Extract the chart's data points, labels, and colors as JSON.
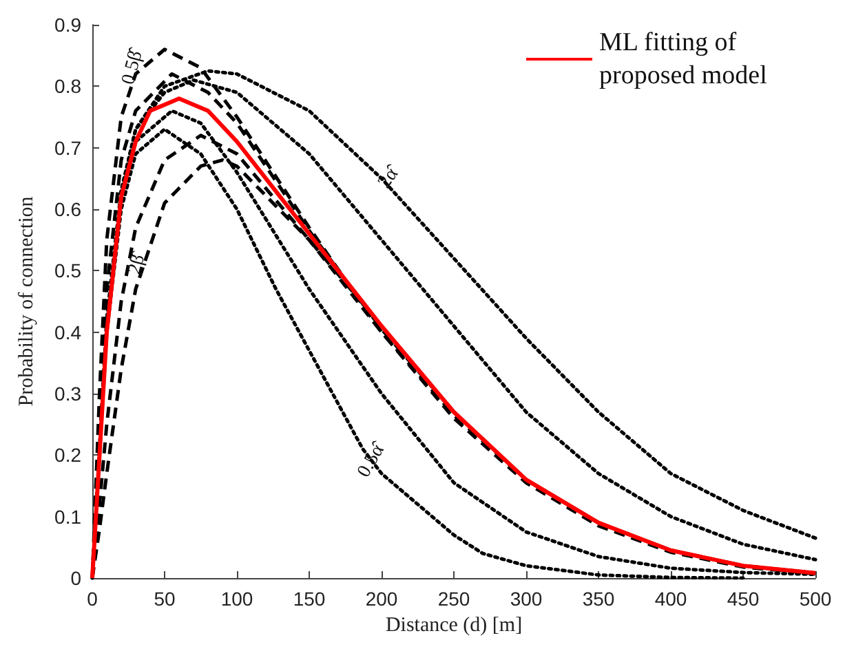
{
  "chart_data": {
    "type": "line",
    "xlabel": "Distance (d) [m]",
    "ylabel": "Probability of connection",
    "xlim": [
      0,
      500
    ],
    "ylim": [
      0,
      0.9
    ],
    "xticks": [
      0,
      50,
      100,
      150,
      200,
      250,
      300,
      350,
      400,
      450,
      500
    ],
    "yticks": [
      0,
      0.1,
      0.2,
      0.3,
      0.4,
      0.5,
      0.6,
      0.7,
      0.8,
      0.9
    ],
    "legend": "top right",
    "marker": "none",
    "series": [
      {
        "color": "#000000",
        "line_style": "dotted",
        "x": [
          0,
          10,
          20,
          30,
          50,
          80,
          100,
          150,
          200,
          250,
          300,
          350,
          400,
          450,
          500
        ],
        "values": [
          0,
          0.42,
          0.63,
          0.73,
          0.8,
          0.825,
          0.82,
          0.76,
          0.65,
          0.52,
          0.39,
          0.27,
          0.17,
          0.11,
          0.065
        ]
      },
      {
        "color": "#000000",
        "line_style": "dotted",
        "x": [
          0,
          10,
          20,
          30,
          50,
          70,
          100,
          150,
          200,
          250,
          300,
          350,
          400,
          450,
          500
        ],
        "values": [
          0,
          0.42,
          0.63,
          0.73,
          0.79,
          0.81,
          0.79,
          0.69,
          0.55,
          0.41,
          0.27,
          0.17,
          0.1,
          0.055,
          0.03
        ]
      },
      {
        "color": "#000000",
        "line_style": "dotted",
        "x": [
          0,
          10,
          20,
          30,
          55,
          75,
          100,
          150,
          200,
          250,
          300,
          350,
          400,
          450,
          500
        ],
        "values": [
          0,
          0.41,
          0.62,
          0.71,
          0.76,
          0.74,
          0.66,
          0.47,
          0.3,
          0.155,
          0.075,
          0.035,
          0.016,
          0.009,
          0.006
        ]
      },
      {
        "color": "#000000",
        "line_style": "dotted",
        "x": [
          0,
          10,
          20,
          30,
          50,
          75,
          100,
          127,
          150,
          187,
          200,
          250,
          270,
          300,
          350,
          400,
          450
        ],
        "values": [
          0,
          0.4,
          0.6,
          0.69,
          0.73,
          0.69,
          0.6,
          0.47,
          0.37,
          0.21,
          0.17,
          0.07,
          0.04,
          0.02,
          0.005,
          0.001,
          0
        ]
      },
      {
        "color": "#000000",
        "line_style": "dashed",
        "x": [
          0,
          5,
          10,
          20,
          30,
          50,
          75,
          100,
          150,
          200,
          250,
          300,
          350,
          400,
          450,
          500
        ],
        "values": [
          0,
          0.3,
          0.55,
          0.75,
          0.82,
          0.86,
          0.83,
          0.75,
          0.57,
          0.4,
          0.26,
          0.155,
          0.085,
          0.042,
          0.018,
          0.007
        ]
      },
      {
        "color": "#000000",
        "line_style": "dashed",
        "x": [
          0,
          5,
          10,
          20,
          30,
          55,
          80,
          100,
          150,
          200,
          250,
          300,
          350,
          400,
          450,
          500
        ],
        "values": [
          0,
          0.25,
          0.47,
          0.68,
          0.76,
          0.82,
          0.79,
          0.74,
          0.565,
          0.405,
          0.27,
          0.16,
          0.09,
          0.045,
          0.02,
          0.008
        ]
      },
      {
        "color": "#000000",
        "line_style": "dashed",
        "x": [
          0,
          5,
          10,
          20,
          30,
          50,
          75,
          100,
          150,
          200,
          250,
          300,
          350,
          400,
          450,
          500
        ],
        "values": [
          0,
          0.12,
          0.25,
          0.45,
          0.57,
          0.68,
          0.72,
          0.69,
          0.55,
          0.41,
          0.27,
          0.16,
          0.09,
          0.045,
          0.02,
          0.008
        ]
      },
      {
        "color": "#000000",
        "line_style": "dashed",
        "x": [
          0,
          5,
          10,
          20,
          30,
          50,
          75,
          90,
          100,
          150,
          200,
          250,
          300,
          350,
          400,
          450,
          500
        ],
        "values": [
          0,
          0.08,
          0.17,
          0.34,
          0.47,
          0.61,
          0.67,
          0.68,
          0.67,
          0.55,
          0.4,
          0.265,
          0.16,
          0.09,
          0.045,
          0.02,
          0.008
        ]
      },
      {
        "name": "ML fitting of proposed model",
        "color": "#ff0000",
        "line_style": "solid",
        "x": [
          0,
          5,
          10,
          20,
          30,
          40,
          60,
          80,
          100,
          150,
          200,
          250,
          300,
          350,
          400,
          450,
          500
        ],
        "values": [
          0,
          0.2,
          0.4,
          0.62,
          0.71,
          0.76,
          0.78,
          0.76,
          0.71,
          0.56,
          0.41,
          0.27,
          0.16,
          0.09,
          0.045,
          0.02,
          0.008
        ]
      }
    ],
    "annotations": [
      {
        "text": "0.5β̂",
        "x": 28,
        "y": 0.83
      },
      {
        "text": "2β̂",
        "x": 31,
        "y": 0.51
      },
      {
        "text": "2α̂",
        "x": 205,
        "y": 0.65
      },
      {
        "text": "0.5α̂",
        "x": 193,
        "y": 0.19
      }
    ]
  }
}
